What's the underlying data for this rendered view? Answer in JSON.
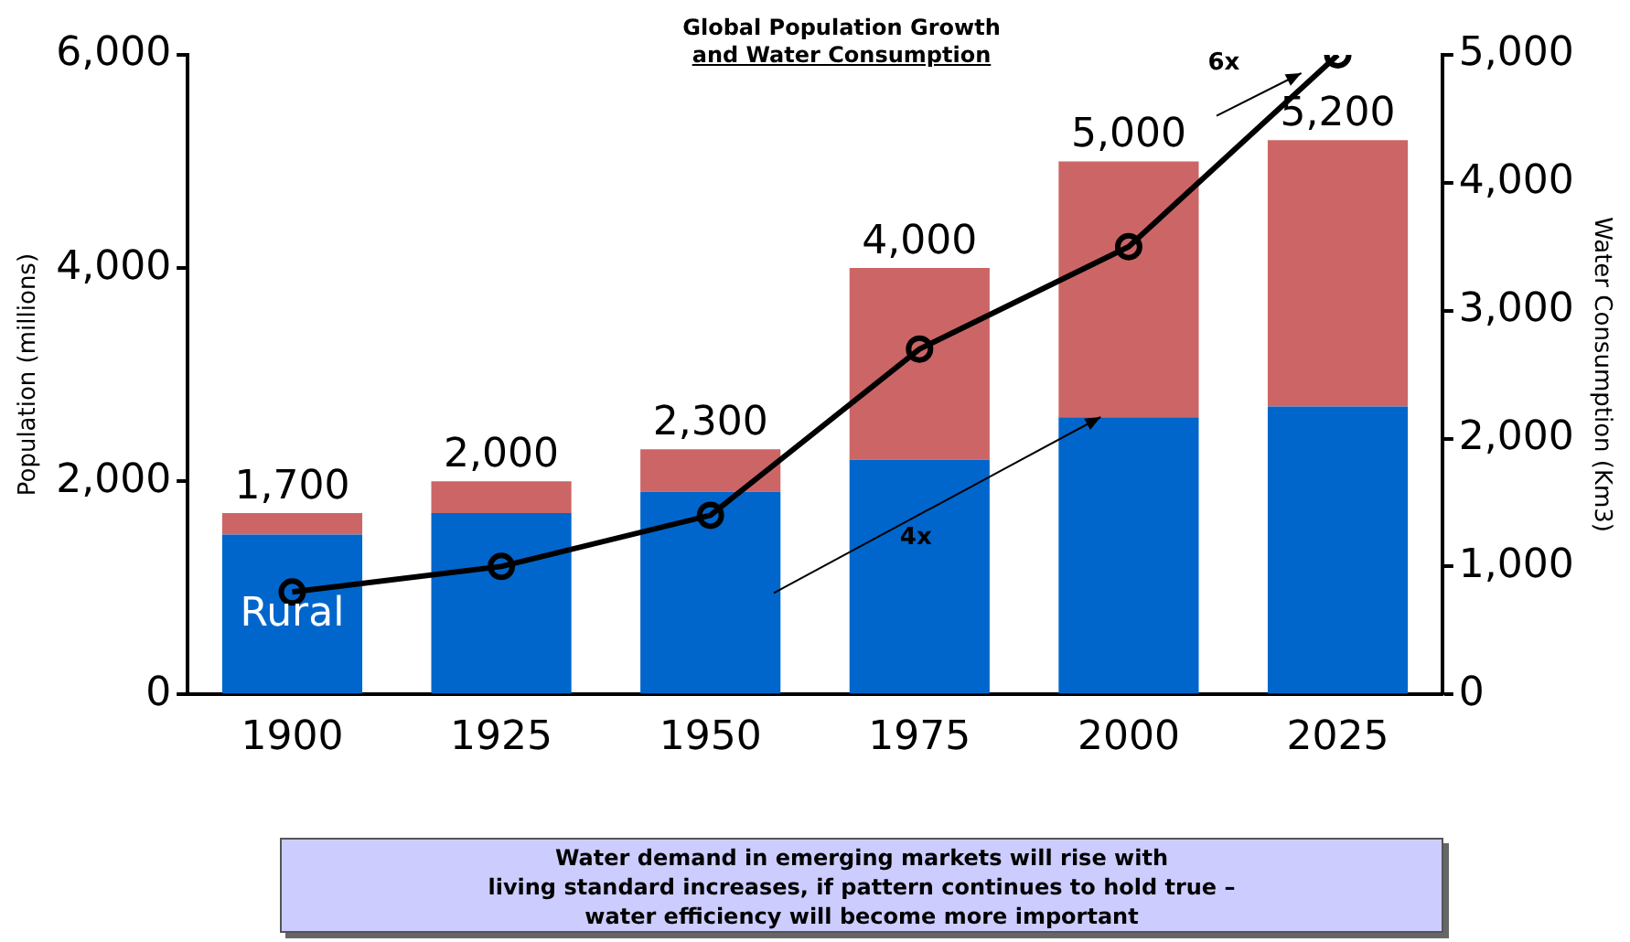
{
  "chart_data": {
    "type": "bar",
    "title": "Global Population Growth\nand Water Consumption",
    "ylabel": "Population (millions)",
    "y2label": "Water Consumption (Km3)",
    "categories": [
      "1900",
      "1925",
      "1950",
      "1975",
      "2000",
      "2025"
    ],
    "stacked": true,
    "series": [
      {
        "name": "Rural",
        "color": "#0066cc",
        "values": [
          1500,
          1700,
          1900,
          2200,
          2600,
          2700
        ]
      },
      {
        "color": "#cc6666",
        "values": [
          200,
          300,
          400,
          1800,
          2400,
          2500
        ]
      },
      {
        "type": "line",
        "axis": "y2",
        "color": "#000000",
        "values": [
          800,
          1000,
          1400,
          2700,
          3500,
          5000
        ]
      }
    ],
    "totals": [
      "1,700",
      "2,000",
      "2,300",
      "4,000",
      "5,000",
      "5,200"
    ],
    "ylim": [
      0,
      6000
    ],
    "yticks": [
      0,
      {
        "value": 2000,
        "label": "2,000"
      },
      {
        "value": 4000,
        "label": "4,000"
      },
      {
        "value": 6000,
        "label": "6,000"
      }
    ],
    "y2lim": [
      0,
      5000
    ],
    "y2ticks": [
      0,
      {
        "value": 1000,
        "label": "1,000"
      },
      {
        "value": 2000,
        "label": "2,000"
      },
      {
        "value": 3000,
        "label": "3,000"
      },
      {
        "value": 4000,
        "label": "4,000"
      },
      {
        "value": 5000,
        "label": "5,000"
      }
    ],
    "marker": "circle",
    "grid": false,
    "legend": false,
    "annotations": [
      "4x",
      "6x",
      "Water demand in emerging markets will rise with\nliving standard increases, if pattern continues to hold true –\nwater efficiency will become more important"
    ]
  }
}
